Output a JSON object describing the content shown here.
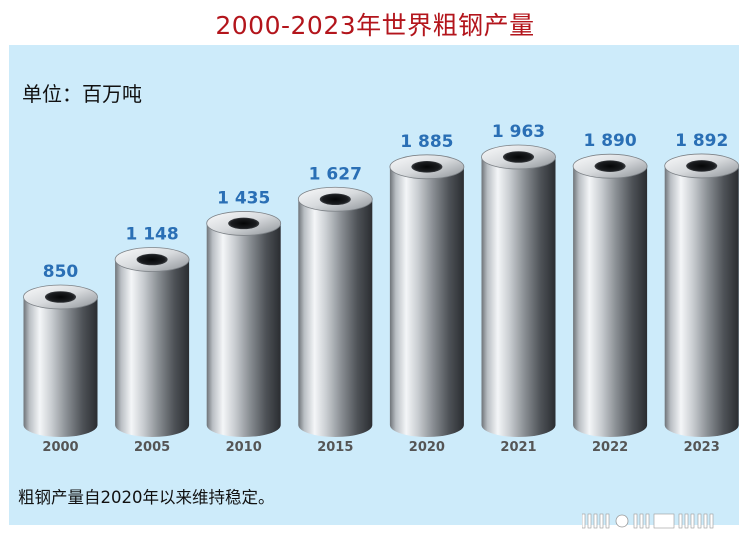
{
  "page": {
    "title": "2000-2023年世界粗钢产量",
    "unit_label": "单位：百万吨",
    "footnote": "粗钢产量自2020年以来维持稳定。"
  },
  "chart_data": {
    "type": "bar",
    "categories": [
      "2000",
      "2005",
      "2010",
      "2015",
      "2020",
      "2021",
      "2022",
      "2023"
    ],
    "values": [
      850,
      1148,
      1435,
      1627,
      1885,
      1963,
      1890,
      1892
    ],
    "value_labels": [
      "850",
      "1 148",
      "1 435",
      "1 627",
      "1 885",
      "1 963",
      "1 890",
      "1 892"
    ],
    "title": "2000-2023年世界粗钢产量",
    "ylabel": "单位：百万吨",
    "xlabel": "",
    "grid": false,
    "legend": "none",
    "colors": {
      "title": "#b3151c",
      "value_label": "#2a6fb5",
      "category_label": "#555555",
      "background": "#cdebfa"
    }
  }
}
